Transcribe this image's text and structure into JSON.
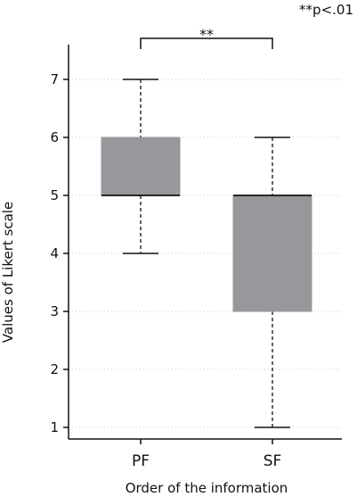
{
  "chart_data": {
    "type": "box",
    "categories": [
      "PF",
      "SF"
    ],
    "series": [
      {
        "name": "PF",
        "min": 4,
        "q1": 5,
        "median": 5,
        "q3": 6,
        "max": 7
      },
      {
        "name": "SF",
        "min": 1,
        "q1": 3,
        "median": 5,
        "q3": 5,
        "max": 6
      }
    ],
    "xlabel": "Order of the information",
    "ylabel": "Values of Likert scale",
    "ylim": [
      0.8,
      7.6
    ],
    "yticks": [
      1,
      2,
      3,
      4,
      5,
      6,
      7
    ],
    "grid": "horizontal dotted",
    "box_color": "#98979c",
    "significance": {
      "between": [
        "PF",
        "SF"
      ],
      "label": "**"
    },
    "note": "**p<.01"
  }
}
